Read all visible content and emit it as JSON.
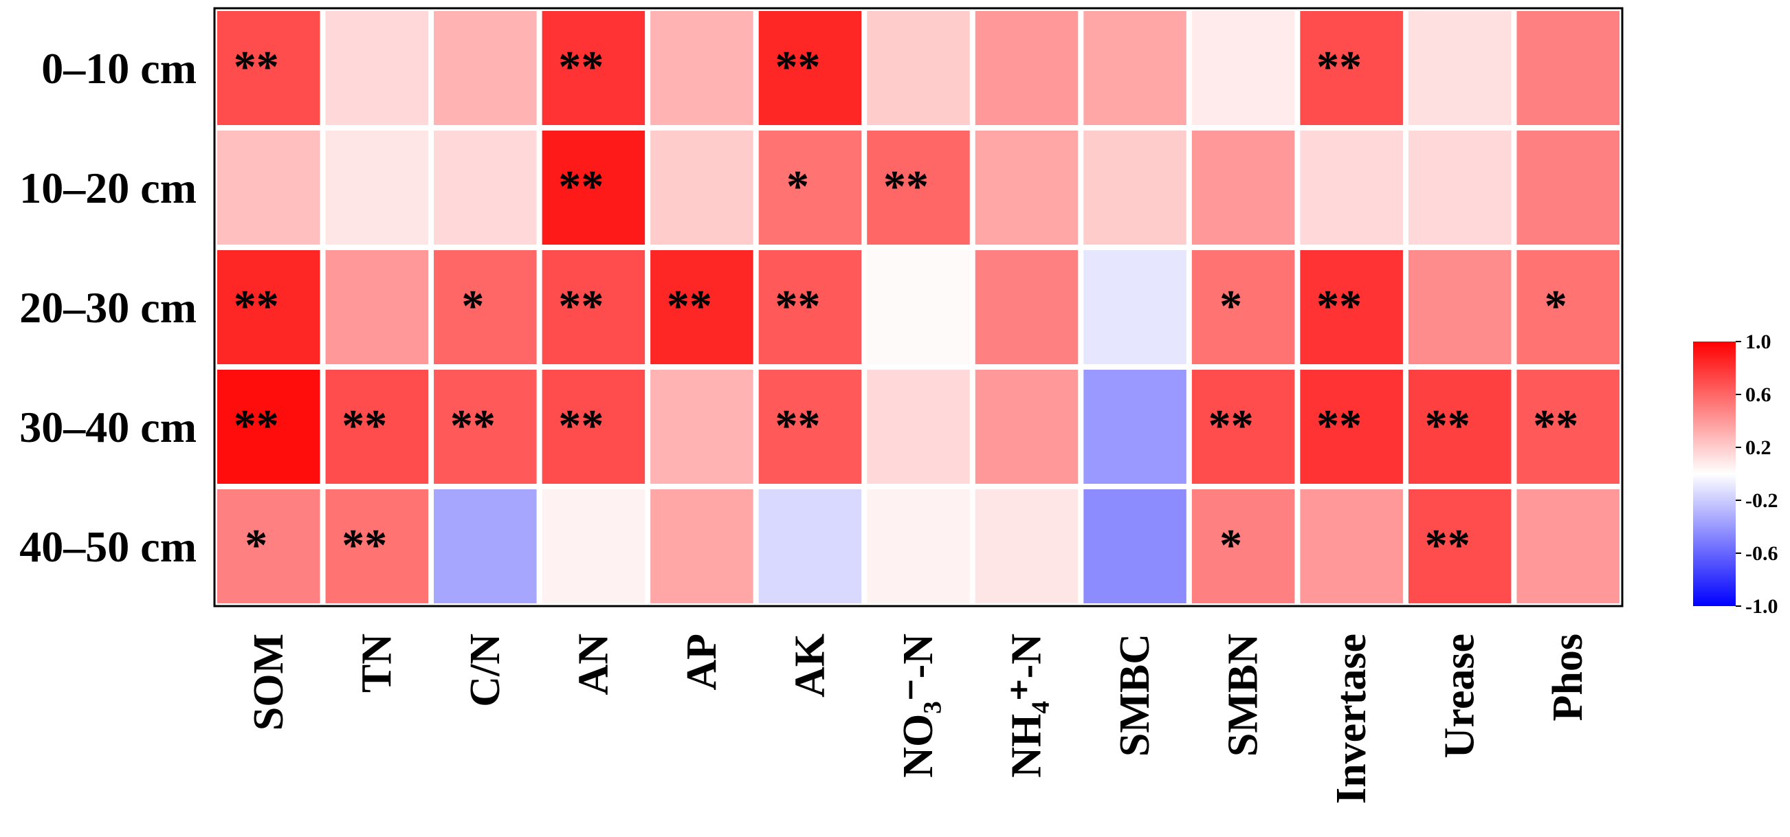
{
  "chart_data": {
    "type": "heatmap",
    "rows": [
      "0–10 cm",
      "10–20 cm",
      "20–30 cm",
      "30–40 cm",
      "40–50 cm"
    ],
    "columns": [
      "SOM",
      "TN",
      "C/N",
      "AN",
      "AP",
      "AK",
      "NO₃⁻-N",
      "NH₄⁺-N",
      "SMBC",
      "SMBN",
      "Invertase",
      "Urease",
      "Phos"
    ],
    "values": [
      [
        0.7,
        0.15,
        0.3,
        0.8,
        0.3,
        0.85,
        0.2,
        0.4,
        0.35,
        0.08,
        0.7,
        0.12,
        0.5
      ],
      [
        0.25,
        0.1,
        0.15,
        0.9,
        0.2,
        0.55,
        0.6,
        0.35,
        0.2,
        0.4,
        0.15,
        0.15,
        0.5
      ],
      [
        0.85,
        0.4,
        0.6,
        0.7,
        0.85,
        0.65,
        0.02,
        0.5,
        -0.1,
        0.55,
        0.8,
        0.45,
        0.55
      ],
      [
        0.95,
        0.7,
        0.65,
        0.7,
        0.3,
        0.65,
        0.15,
        0.4,
        -0.4,
        0.7,
        0.8,
        0.75,
        0.65
      ],
      [
        0.5,
        0.55,
        -0.35,
        0.05,
        0.35,
        -0.15,
        0.05,
        0.1,
        -0.45,
        0.5,
        0.4,
        0.7,
        0.4
      ]
    ],
    "annotations": [
      [
        "**",
        null,
        null,
        "**",
        null,
        "**",
        null,
        null,
        null,
        null,
        "**",
        null,
        null
      ],
      [
        null,
        null,
        null,
        "**",
        null,
        "*",
        "**",
        null,
        null,
        null,
        null,
        null,
        null
      ],
      [
        "**",
        null,
        "*",
        "**",
        "**",
        "**",
        null,
        null,
        null,
        "*",
        "**",
        null,
        "*"
      ],
      [
        "**",
        "**",
        "**",
        "**",
        null,
        "**",
        null,
        null,
        null,
        "**",
        "**",
        "**",
        "**"
      ],
      [
        "*",
        "**",
        null,
        null,
        null,
        null,
        null,
        null,
        null,
        "*",
        null,
        "**",
        null
      ]
    ],
    "clim": [
      -1,
      1
    ],
    "cticks": [
      {
        "value": 1,
        "label": "1.0"
      },
      0.6,
      0.2,
      -0.2,
      -0.6,
      {
        "value": -1,
        "label": "-1.0"
      }
    ],
    "colors": {
      "low": "#0000ff",
      "mid": "#ffffff",
      "high": "#ff0000"
    }
  }
}
